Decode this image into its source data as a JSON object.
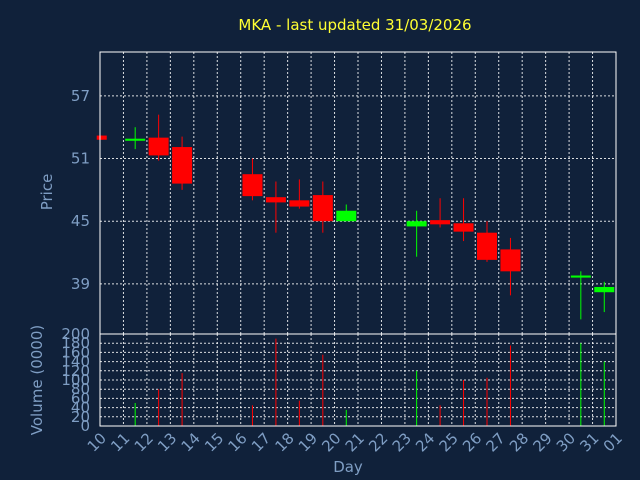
{
  "chart_data": {
    "type": "candlestick",
    "title": "MKA - last updated 31/03/2026",
    "xlabel": "Day",
    "price_panel": {
      "ylabel": "Price",
      "yticks": [
        39,
        45,
        51,
        57
      ],
      "ylim": [
        34.2,
        61.2
      ]
    },
    "volume_panel": {
      "ylabel": "Volume (0000)",
      "yticks": [
        0,
        20,
        40,
        60,
        80,
        100,
        120,
        140,
        160,
        180,
        200
      ],
      "ylim": [
        0,
        200
      ]
    },
    "x_tick_labels": [
      "10",
      "11",
      "12",
      "13",
      "14",
      "15",
      "16",
      "17",
      "18",
      "19",
      "20",
      "21",
      "22",
      "23",
      "24",
      "25",
      "26",
      "27",
      "28",
      "29",
      "30",
      "31",
      "01"
    ],
    "grid": true,
    "colors": {
      "background": "#10213a",
      "up": "#00ff00",
      "down": "#ff0000",
      "title": "#ffff33",
      "axis_text": "#7f9ec4",
      "grid": "#ffffff"
    },
    "candles": [
      {
        "day": "10",
        "open": 53.2,
        "high": 53.2,
        "low": 52.8,
        "close": 52.8,
        "volume": 0
      },
      {
        "day": "11",
        "open": 52.7,
        "high": 54.0,
        "low": 51.9,
        "close": 52.9,
        "volume": 50
      },
      {
        "day": "12",
        "open": 53.0,
        "high": 55.2,
        "low": 50.8,
        "close": 51.3,
        "volume": 80
      },
      {
        "day": "13",
        "open": 52.1,
        "high": 53.1,
        "low": 48.0,
        "close": 48.6,
        "volume": 115
      },
      {
        "day": "16",
        "open": 49.5,
        "high": 51.0,
        "low": 47.0,
        "close": 47.4,
        "volume": 45
      },
      {
        "day": "17",
        "open": 47.3,
        "high": 48.8,
        "low": 43.9,
        "close": 46.8,
        "volume": 190
      },
      {
        "day": "18",
        "open": 47.0,
        "high": 49.0,
        "low": 46.2,
        "close": 46.4,
        "volume": 55
      },
      {
        "day": "19",
        "open": 47.5,
        "high": 48.8,
        "low": 43.9,
        "close": 45.0,
        "volume": 155
      },
      {
        "day": "20",
        "open": 45.0,
        "high": 46.6,
        "low": 45.0,
        "close": 46.0,
        "volume": 35
      },
      {
        "day": "23",
        "open": 44.5,
        "high": 46.0,
        "low": 41.6,
        "close": 45.0,
        "volume": 120
      },
      {
        "day": "24",
        "open": 45.1,
        "high": 47.2,
        "low": 44.4,
        "close": 44.7,
        "volume": 45
      },
      {
        "day": "25",
        "open": 44.8,
        "high": 47.2,
        "low": 43.1,
        "close": 44.0,
        "volume": 100
      },
      {
        "day": "26",
        "open": 43.9,
        "high": 45.0,
        "low": 41.1,
        "close": 41.3,
        "volume": 105
      },
      {
        "day": "27",
        "open": 42.3,
        "high": 43.4,
        "low": 37.9,
        "close": 40.2,
        "volume": 175
      },
      {
        "day": "30",
        "open": 39.6,
        "high": 40.2,
        "low": 35.6,
        "close": 39.8,
        "volume": 180
      },
      {
        "day": "31",
        "open": 38.2,
        "high": 39.2,
        "low": 36.3,
        "close": 38.7,
        "volume": 140
      }
    ]
  }
}
